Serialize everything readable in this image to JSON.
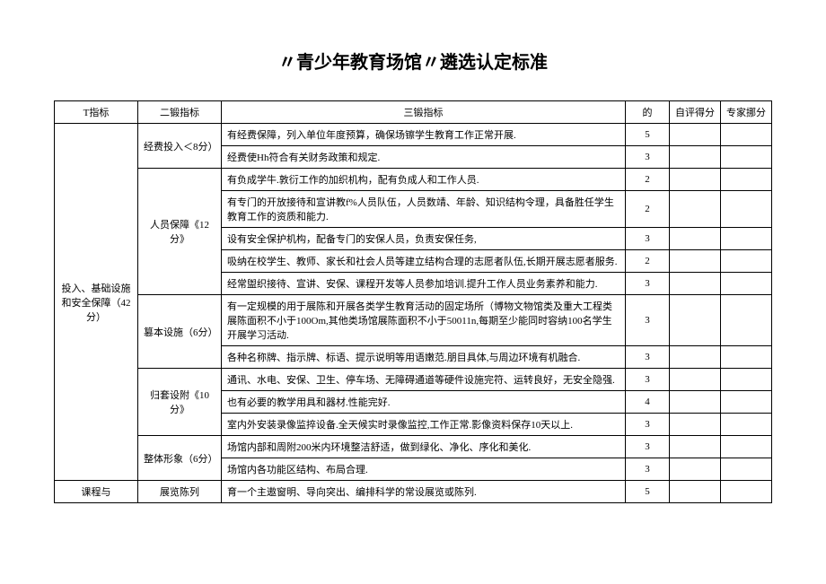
{
  "title": "〃青少年教育场馆〃遴选认定标准",
  "headers": {
    "l1": "T指标",
    "l2": "二锻指标",
    "l3": "三锻指标",
    "score": "的",
    "self": "自评得分",
    "expert": "专家挪分"
  },
  "level1": {
    "a": "投入、基础设施和安全保障（42分）",
    "b": "课程与"
  },
  "level2": {
    "jingfei": "经费投入＜8分）",
    "renyuan": "人员保障《12分》",
    "jiben": "篡本设施（6分）",
    "peitao": "归套设附《10分》",
    "zhengti": "整体形象（6分）",
    "zhanlan": "展览陈列"
  },
  "rows": [
    {
      "text": "有经费保障，列入单位年度预算，确保场镲学生教育工作正常开展.",
      "score": "5"
    },
    {
      "text": "经费使Hh符合有关财务政策和规定.",
      "score": "3"
    },
    {
      "text": "有负成学牛.敦衍工作的加织机构，配有负成人和工作人员.",
      "score": "2"
    },
    {
      "text": "有专门的开放接待和宣讲教f%人员队伍，人员数靖、年龄、知识结构令理，具备胜任学生教育工作的资质和能力.",
      "score": "2"
    },
    {
      "text": "设有安全保护机构，配备专门的安保人员，负责安保任务,",
      "score": "3"
    },
    {
      "text": "吸纳在校学生、教师、家长和社会人员等建立结构合理的志愿者队伍,长期开展志愿者服务.",
      "score": "2"
    },
    {
      "text": "经常盥织接待、宣讲、安保、课程开发等人员参加培训.提升工作人员业务素养和能力.",
      "score": "3"
    },
    {
      "text": "有一定规模的用于展陈和开展各类学生教育活动的固定场所（博物文物馆类及重大工程类展陈面积不小于100Om,其他类场馆展陈面积不小于50011n,每期至少能同时容纳100名学生开展学习活动.",
      "score": "3"
    },
    {
      "text": "各种名称牌、指示牌、标语、提示说明等用语嫩范.朋目具体,与周边环境有机融合.",
      "score": "3"
    },
    {
      "text": "通讯、水电、安保、卫生、停车场、无障碍通道等硬件设施完符、运转良好，无安全隐强.",
      "score": "3"
    },
    {
      "text": "也有必要的教学用具和器材.性能完好.",
      "score": "4"
    },
    {
      "text": "室内外安装录像监捽设备.全天候实时录像监控,工作正常.影像资料保存10天以上.",
      "score": "3"
    },
    {
      "text": "场馆内部和周附200米内环境整洁舒适，做到绿化、净化、序化和美化.",
      "score": "3"
    },
    {
      "text": "场馆内各功能区结构、布局合理.",
      "score": "3"
    },
    {
      "text": "育一个主遨窗明、导向突出、编排科学的常设展览或陈列.",
      "score": "5"
    }
  ]
}
